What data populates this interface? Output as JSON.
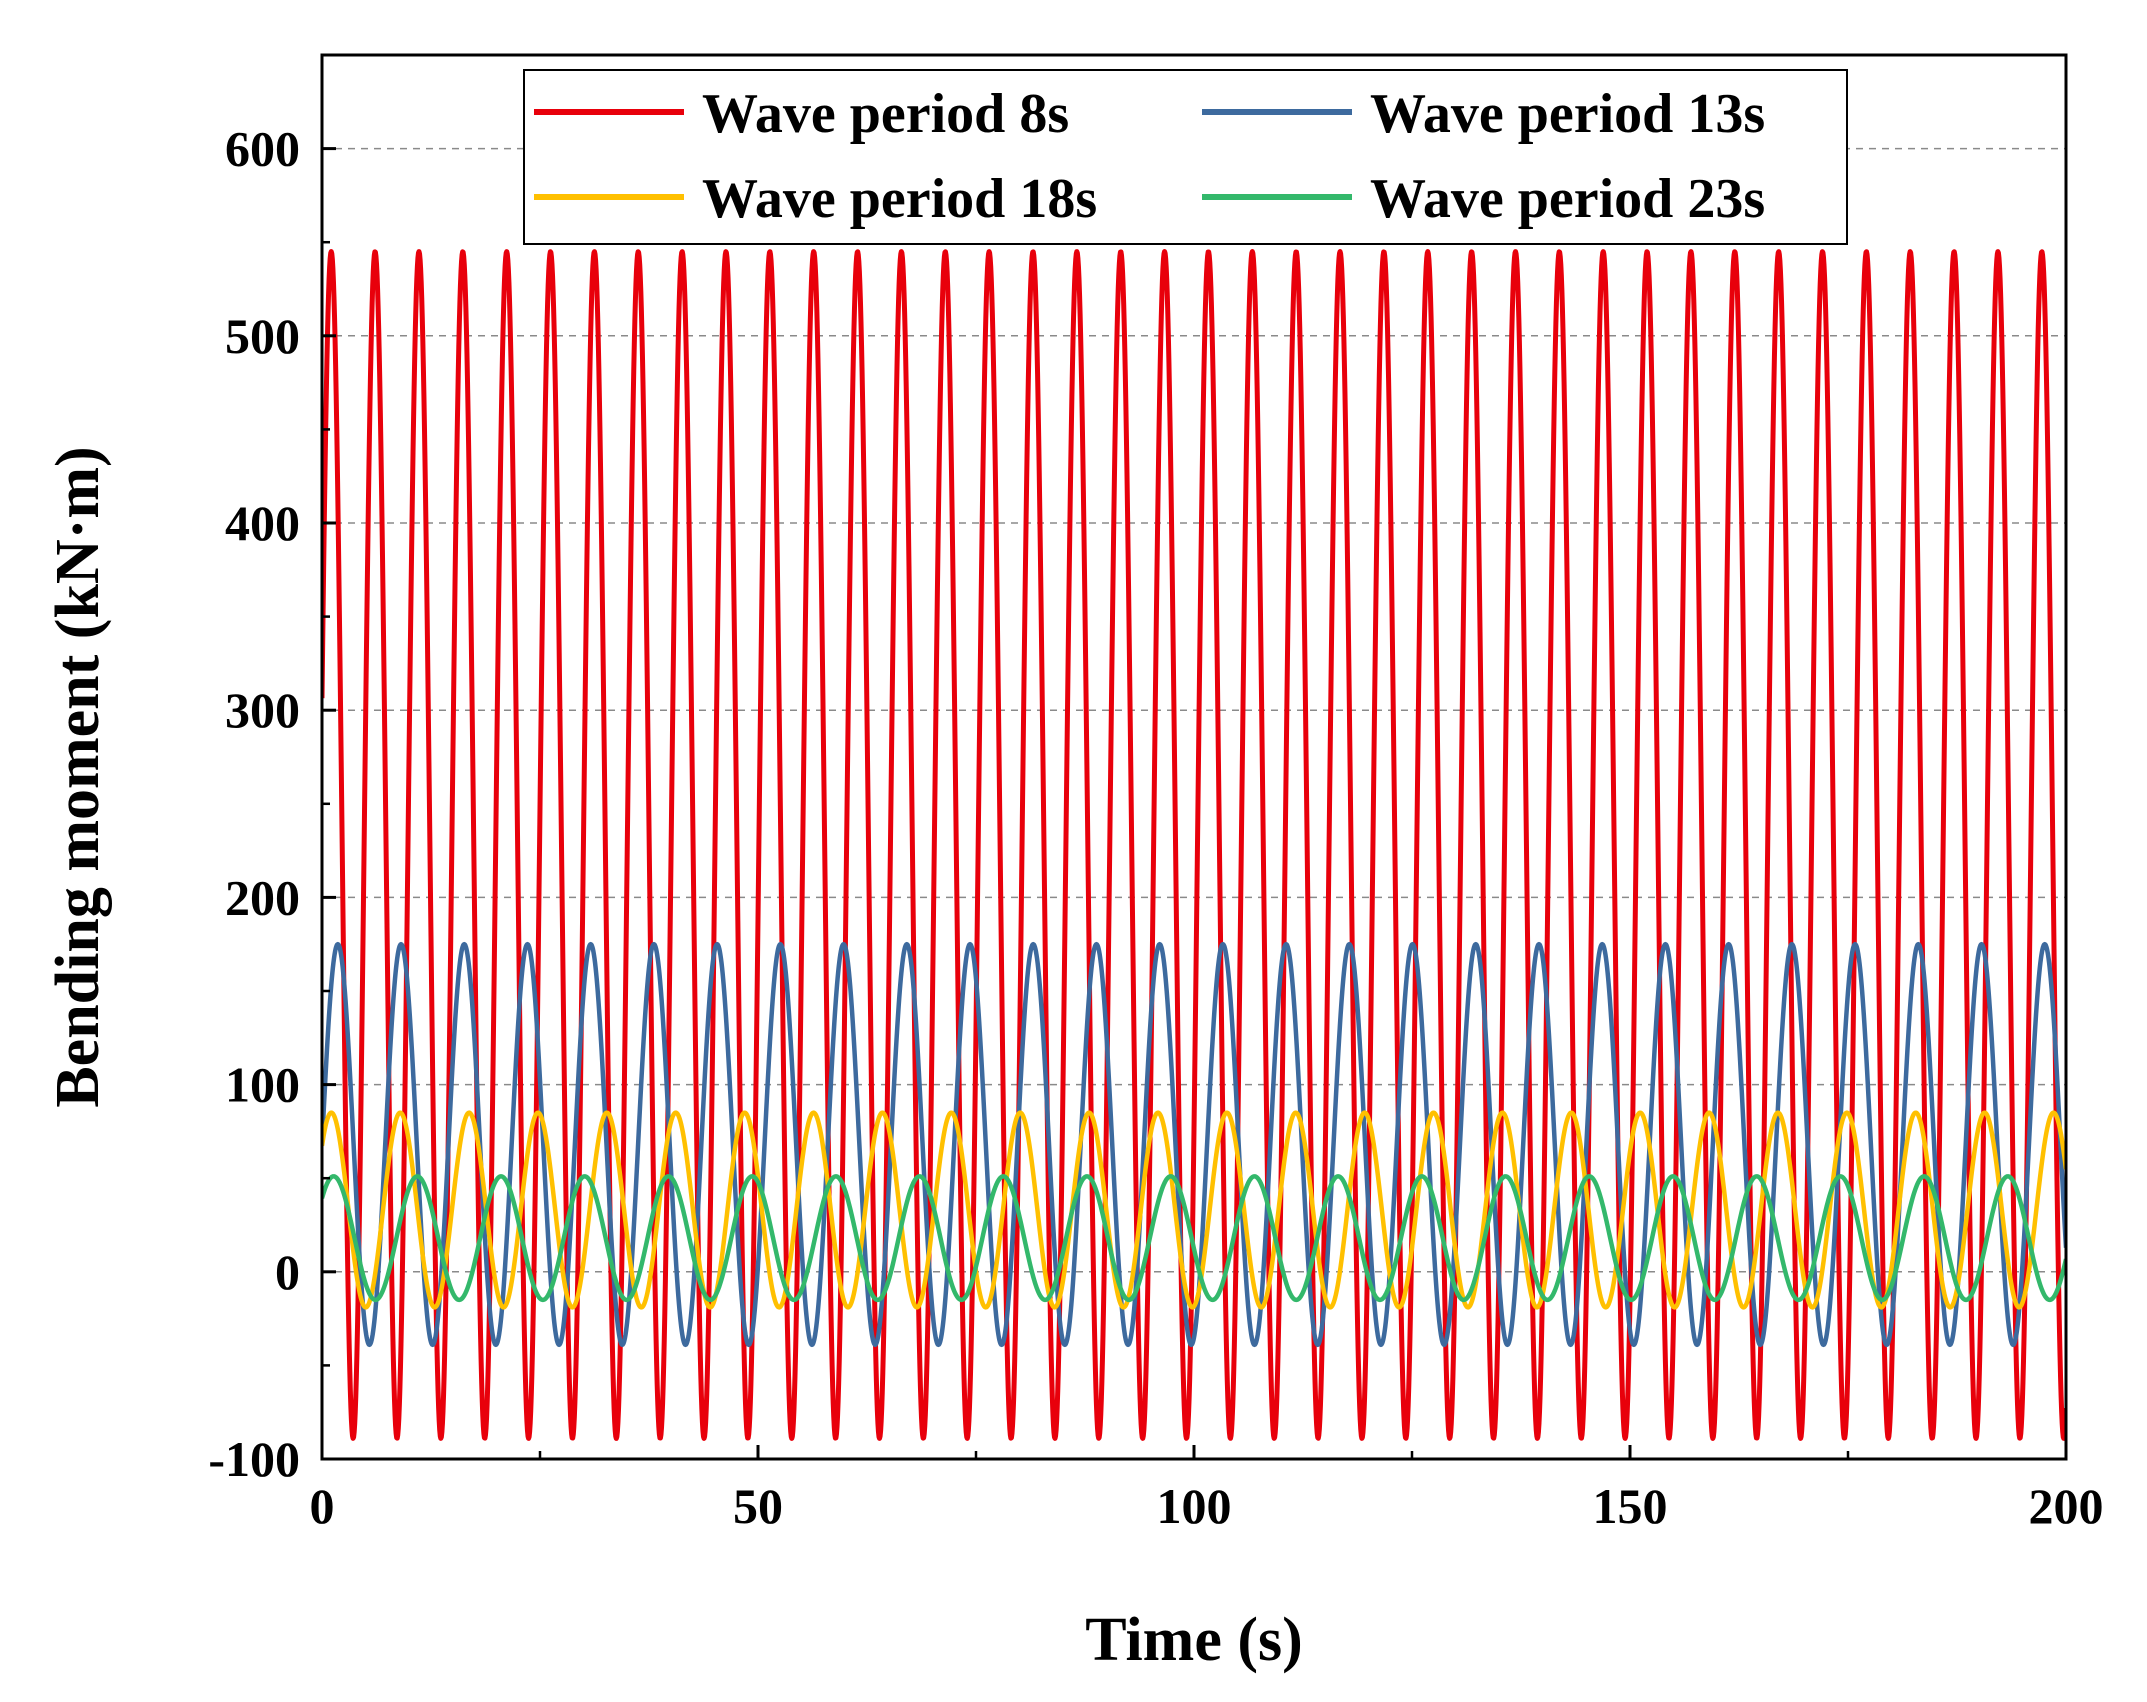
{
  "chart_data": {
    "type": "line",
    "xlabel": "Time (s)",
    "ylabel": "Bending moment (kN·m)",
    "xlim": [
      0,
      200
    ],
    "ylim": [
      -100,
      650
    ],
    "x_ticks": [
      0,
      50,
      100,
      150,
      200
    ],
    "y_ticks": [
      -100,
      0,
      100,
      200,
      300,
      400,
      500,
      600
    ],
    "x_tick_labels": [
      "0",
      "50",
      "100",
      "150",
      "200"
    ],
    "y_tick_labels": [
      "-100",
      "0",
      "100",
      "200",
      "300",
      "400",
      "500",
      "600"
    ],
    "grid": "horizontal dashed at y tick positions",
    "legend_position": "top-center",
    "series": [
      {
        "name": "Wave period 8s",
        "color": "#e8000b",
        "period": 5.03,
        "mean": 228,
        "amplitude": 317,
        "phase": 0.25,
        "beat_amplitude": 0,
        "beat_period": 0
      },
      {
        "name": "Wave period 13s",
        "color": "#3d6a9e",
        "period": 7.25,
        "mean": 68,
        "amplitude": 107,
        "phase": 0.0,
        "beat_amplitude": 0,
        "beat_period": 0
      },
      {
        "name": "Wave period 18s",
        "color": "#ffc000",
        "period": 7.9,
        "mean": 33,
        "amplitude": 52,
        "phase": 0.72,
        "beat_amplitude": 0,
        "beat_period": 0
      },
      {
        "name": "Wave period 23s",
        "color": "#33b86b",
        "period": 9.6,
        "mean": 18,
        "amplitude": 33,
        "phase": 0.7,
        "beat_amplitude": 0,
        "beat_period": 0
      }
    ],
    "sample_points": 3200
  }
}
